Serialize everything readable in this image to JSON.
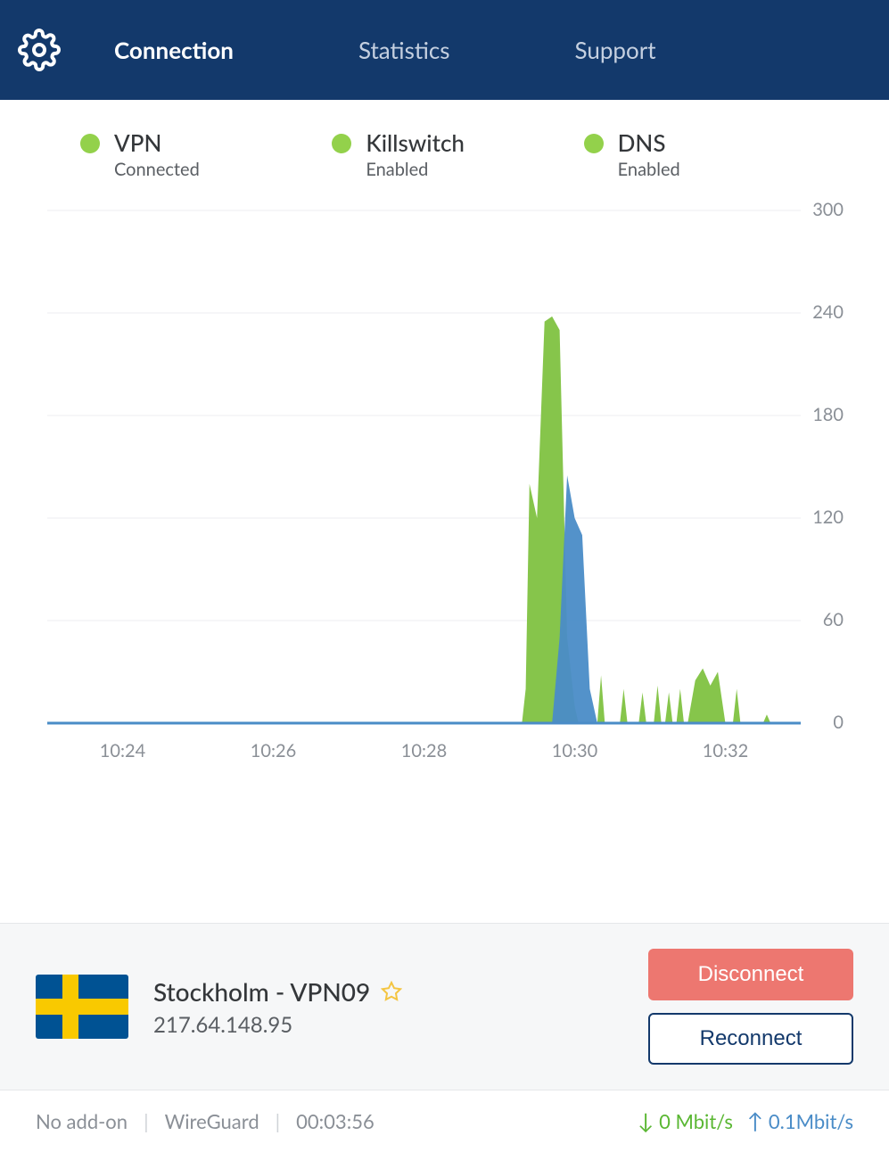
{
  "header": {
    "tabs": [
      {
        "label": "Connection",
        "active": true
      },
      {
        "label": "Statistics",
        "active": false
      },
      {
        "label": "Support",
        "active": false
      }
    ]
  },
  "status": {
    "dot_color": "#93d14b",
    "items": [
      {
        "title": "VPN",
        "value": "Connected"
      },
      {
        "title": "Killswitch",
        "value": "Enabled"
      },
      {
        "title": "DNS",
        "value": "Enabled"
      }
    ]
  },
  "chart": {
    "type": "area",
    "ylim": [
      0,
      300
    ],
    "yticks": [
      0,
      60,
      120,
      180,
      240,
      300
    ],
    "xticks": [
      "10:24",
      "10:26",
      "10:28",
      "10:30",
      "10:32"
    ],
    "xrange_minutes": [
      23,
      33
    ],
    "grid_color": "#eceef1",
    "axis_text_color": "#8a8f96",
    "baseline_color": "#4a8cc7",
    "series": [
      {
        "name": "download",
        "color": "#7fc241",
        "points": [
          [
            29.3,
            0
          ],
          [
            29.35,
            20
          ],
          [
            29.4,
            140
          ],
          [
            29.45,
            130
          ],
          [
            29.5,
            120
          ],
          [
            29.6,
            235
          ],
          [
            29.7,
            238
          ],
          [
            29.8,
            230
          ],
          [
            29.9,
            50
          ],
          [
            30.0,
            10
          ],
          [
            30.05,
            0
          ],
          [
            30.3,
            0
          ],
          [
            30.35,
            28
          ],
          [
            30.4,
            0
          ],
          [
            30.6,
            0
          ],
          [
            30.65,
            20
          ],
          [
            30.7,
            0
          ],
          [
            30.85,
            0
          ],
          [
            30.9,
            18
          ],
          [
            30.95,
            0
          ],
          [
            31.05,
            0
          ],
          [
            31.1,
            22
          ],
          [
            31.15,
            0
          ],
          [
            31.2,
            0
          ],
          [
            31.25,
            18
          ],
          [
            31.3,
            0
          ],
          [
            31.35,
            0
          ],
          [
            31.4,
            20
          ],
          [
            31.45,
            0
          ],
          [
            31.5,
            0
          ],
          [
            31.6,
            25
          ],
          [
            31.7,
            32
          ],
          [
            31.8,
            22
          ],
          [
            31.9,
            30
          ],
          [
            32.0,
            0
          ],
          [
            32.1,
            0
          ],
          [
            32.15,
            20
          ],
          [
            32.2,
            0
          ],
          [
            32.5,
            0
          ],
          [
            32.55,
            5
          ],
          [
            32.6,
            0
          ]
        ]
      },
      {
        "name": "upload",
        "color": "#4a8cc7",
        "points": [
          [
            29.7,
            0
          ],
          [
            29.8,
            50
          ],
          [
            29.9,
            145
          ],
          [
            30.0,
            120
          ],
          [
            30.1,
            110
          ],
          [
            30.2,
            20
          ],
          [
            30.3,
            0
          ]
        ]
      }
    ]
  },
  "server": {
    "name": "Stockholm - VPN09",
    "ip": "217.64.148.95",
    "flag": "sweden"
  },
  "buttons": {
    "disconnect": "Disconnect",
    "reconnect": "Reconnect"
  },
  "footer": {
    "addon": "No add-on",
    "protocol": "WireGuard",
    "duration": "00:03:56",
    "down_speed": "0 Mbit/s",
    "up_speed": "0.1Mbit/s"
  },
  "colors": {
    "header_bg": "#13396b",
    "disconnect_bg": "#ed7770",
    "reconnect_border": "#13396b"
  }
}
